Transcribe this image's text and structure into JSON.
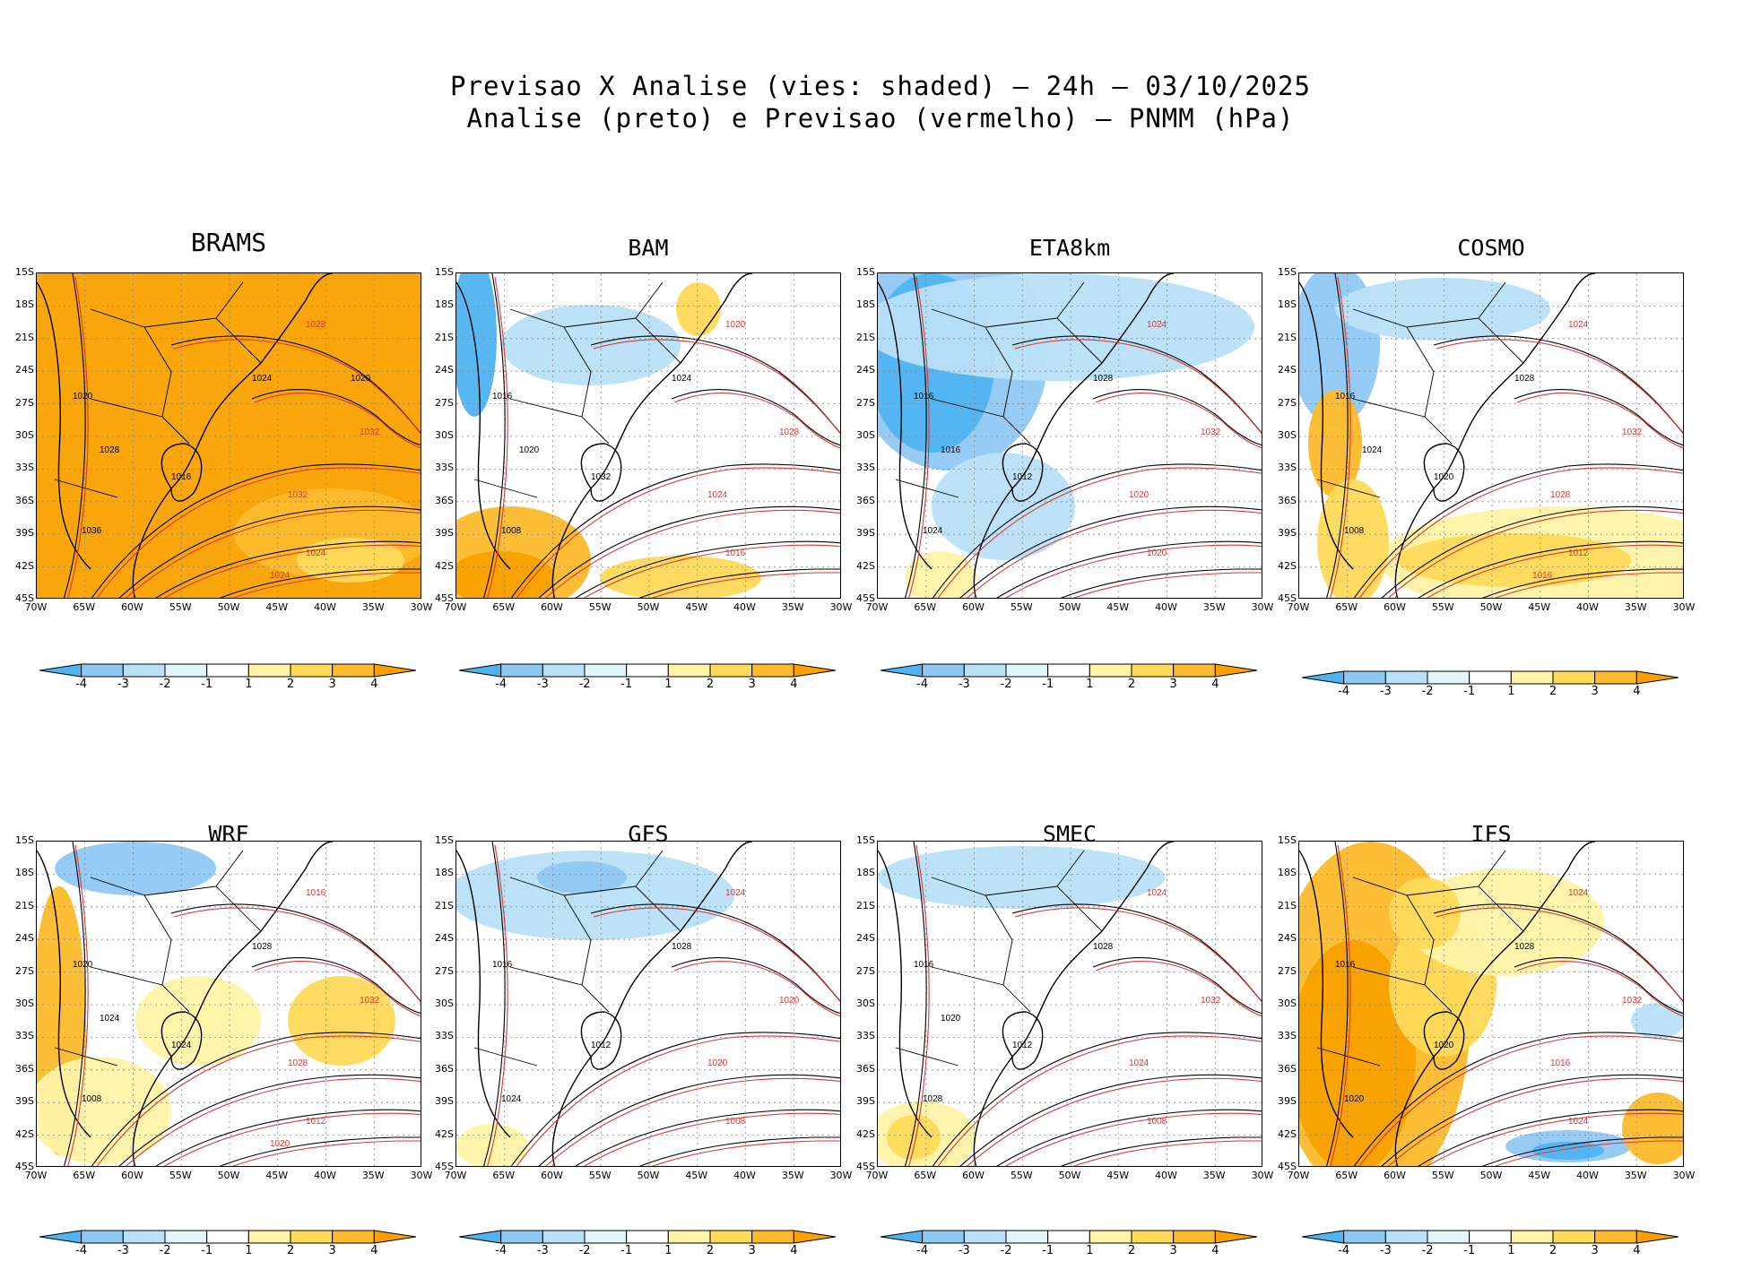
{
  "header": {
    "line1": "Previsao X Analise (vies: shaded) – 24h – 03/10/2025",
    "line2": "Analise (preto) e Previsao (vermelho) – PNMM (hPa)"
  },
  "axes": {
    "lat_ticks": [
      "15S",
      "18S",
      "21S",
      "24S",
      "27S",
      "30S",
      "33S",
      "36S",
      "39S",
      "42S",
      "45S"
    ],
    "lon_ticks": [
      "70W",
      "65W",
      "60W",
      "55W",
      "50W",
      "45W",
      "40W",
      "35W",
      "30W"
    ]
  },
  "colorbar": {
    "labels": [
      "-4",
      "-3",
      "-2",
      "-1",
      "1",
      "2",
      "3",
      "4"
    ],
    "colors": [
      "#4fb3f0",
      "#8fc8f3",
      "#b9e0f7",
      "#e0f6fb",
      "#ffffff",
      "#fff3a8",
      "#ffd95a",
      "#fdba2c",
      "#f9a100"
    ]
  },
  "colors": {
    "analysis": "#000000",
    "forecast": "#e0362f"
  },
  "panels": [
    {
      "model": "BRAMS",
      "bias": "warm-strong",
      "labels": [
        "1020",
        "1028",
        "1024",
        "1032",
        "1016",
        "1024",
        "1036",
        "1032",
        "1028",
        "1024",
        "1020"
      ]
    },
    {
      "model": "BAM",
      "bias": "mixed",
      "labels": [
        "1016",
        "1020",
        "1024",
        "1028",
        "1032",
        "1016",
        "1008",
        "1024",
        "1020"
      ]
    },
    {
      "model": "ETA8km",
      "bias": "cool",
      "labels": [
        "1016",
        "1024",
        "1028",
        "1032",
        "1012",
        "1020",
        "1024",
        "1020",
        "1016"
      ]
    },
    {
      "model": "COSMO",
      "bias": "warm-south",
      "labels": [
        "1016",
        "1024",
        "1028",
        "1032",
        "1020",
        "1012",
        "1008",
        "1028",
        "1024",
        "1016"
      ]
    },
    {
      "model": "WRF",
      "bias": "warm-west",
      "labels": [
        "1020",
        "1016",
        "1028",
        "1032",
        "1024",
        "1012",
        "1008",
        "1028",
        "1024",
        "1020"
      ]
    },
    {
      "model": "GFS",
      "bias": "neutral",
      "labels": [
        "1016",
        "1024",
        "1028",
        "1020",
        "1012",
        "1008",
        "1024",
        "1020"
      ]
    },
    {
      "model": "SMEC",
      "bias": "neutral-warm",
      "labels": [
        "1016",
        "1024",
        "1028",
        "1032",
        "1012",
        "1008",
        "1028",
        "1024",
        "1020"
      ]
    },
    {
      "model": "IFS",
      "bias": "warm-strong-west",
      "labels": [
        "1016",
        "1024",
        "1028",
        "1032",
        "1020",
        "1024",
        "1020",
        "1016"
      ]
    }
  ]
}
